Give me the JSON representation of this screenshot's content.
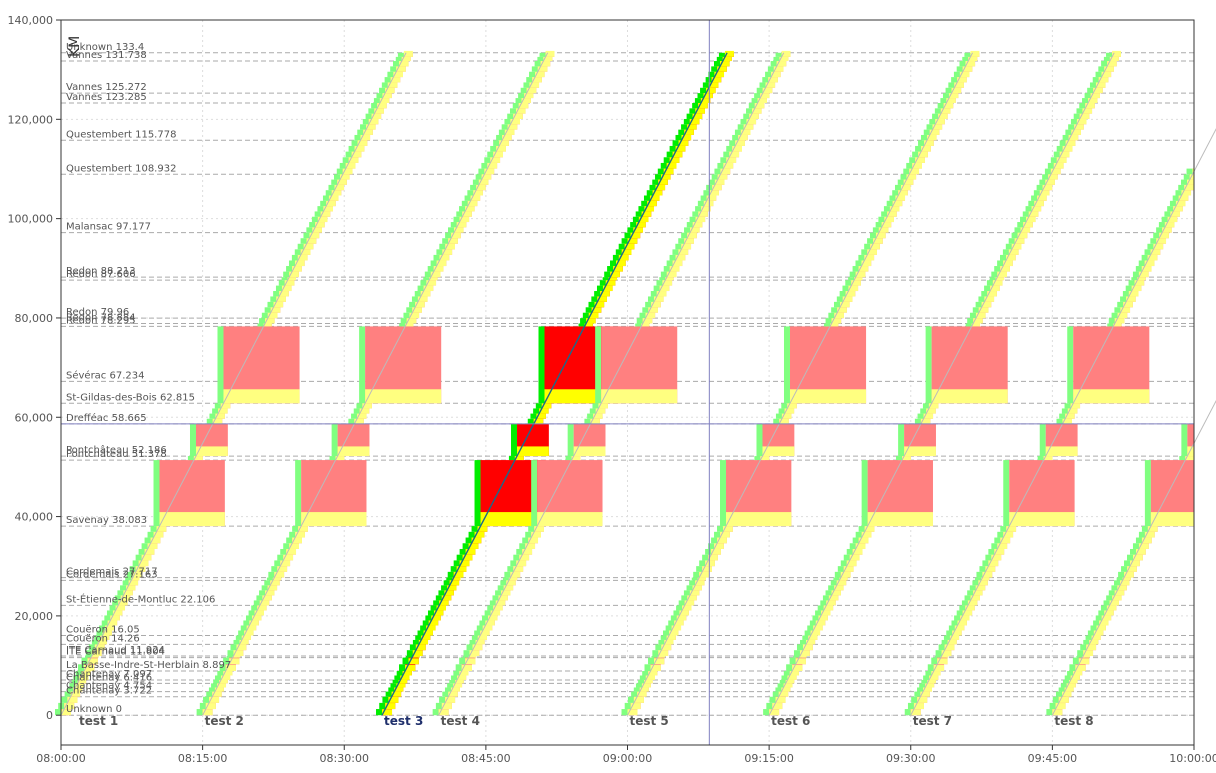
{
  "chart_data": {
    "type": "line",
    "title": "",
    "xlabel": "",
    "ylabel": "KM",
    "x_range": [
      "08:00:00",
      "10:00:00"
    ],
    "ylim": [
      -6000,
      140000
    ],
    "x_ticks": [
      "08:00:00",
      "08:15:00",
      "08:30:00",
      "08:45:00",
      "09:00:00",
      "09:15:00",
      "09:30:00",
      "09:45:00",
      "10:00:00"
    ],
    "y_ticks": [
      0,
      20000,
      40000,
      60000,
      80000,
      100000,
      120000,
      140000
    ],
    "y_tick_labels": [
      "0",
      "20,000",
      "40,000",
      "60,000",
      "80,000",
      "100,000",
      "120,000",
      "140,000"
    ],
    "grid": true,
    "stations": [
      {
        "label": "Unknown 0",
        "km": 0
      },
      {
        "label": "Chantenay 3.722",
        "km": 3.722
      },
      {
        "label": "Chantenay 4.754",
        "km": 4.754
      },
      {
        "label": "Chantenay 6.416",
        "km": 6.416
      },
      {
        "label": "Chantenay 7.097",
        "km": 7.097
      },
      {
        "label": "La Basse-Indre-St-Herblain 8.897",
        "km": 8.897
      },
      {
        "label": "ITE Carnaud 11.604",
        "km": 11.604
      },
      {
        "label": "ITE Carnaud 11.924",
        "km": 11.924
      },
      {
        "label": "Couëron 14.26",
        "km": 14.26
      },
      {
        "label": "Couëron 16.05",
        "km": 16.05
      },
      {
        "label": "St-Étienne-de-Montluc 22.106",
        "km": 22.106
      },
      {
        "label": "Cordemais 27.163",
        "km": 27.163
      },
      {
        "label": "Cordemais 27.717",
        "km": 27.717
      },
      {
        "label": "Savenay 38.083",
        "km": 38.083
      },
      {
        "label": "Pontchâteau 51.378",
        "km": 51.378
      },
      {
        "label": "Pontchâteau 52.186",
        "km": 52.186
      },
      {
        "label": "Drefféac 58.665",
        "km": 58.665
      },
      {
        "label": "St-Gildas-des-Bois 62.815",
        "km": 62.815
      },
      {
        "label": "Sévérac 67.234",
        "km": 67.234
      },
      {
        "label": "Redon 78.295",
        "km": 78.295
      },
      {
        "label": "Redon 78.884",
        "km": 78.884
      },
      {
        "label": "Redon 79.96",
        "km": 79.96
      },
      {
        "label": "Redon 87.606",
        "km": 87.606
      },
      {
        "label": "Redon 88.213",
        "km": 88.213
      },
      {
        "label": "Malansac 97.177",
        "km": 97.177
      },
      {
        "label": "Questembert 108.932",
        "km": 108.932
      },
      {
        "label": "Questembert 115.778",
        "km": 115.778
      },
      {
        "label": "Vannes 123.285",
        "km": 123.285
      },
      {
        "label": "Vannes 125.272",
        "km": 125.272
      },
      {
        "label": "Vannes 131.738",
        "km": 131.738
      },
      {
        "label": "Unknown 133.4",
        "km": 133.4
      }
    ],
    "series": [
      {
        "name": "test 1",
        "start": "08:00:00",
        "active": false
      },
      {
        "name": "test 2",
        "start": "08:15:00",
        "active": false
      },
      {
        "name": "test 3",
        "start": "08:34:00",
        "active": true
      },
      {
        "name": "test 4",
        "start": "08:40:00",
        "active": false
      },
      {
        "name": "test 5",
        "start": "09:00:00",
        "active": false
      },
      {
        "name": "test 6",
        "start": "09:15:00",
        "active": false
      },
      {
        "name": "test 7",
        "start": "09:30:00",
        "active": false
      },
      {
        "name": "test 8",
        "start": "09:45:00",
        "active": false
      }
    ],
    "crosshair": {
      "time": "09:08:40",
      "km": 58.665
    },
    "colors": {
      "occupation": "#ff8080",
      "occupation_active": "#ff0000",
      "release": "#ffff80",
      "release_active": "#ffff00",
      "approach": "#80ff80",
      "approach_active": "#00ee00",
      "path": "#bbbbbb",
      "path_active": "#1a6a8a",
      "crosshair": "#8080c0"
    }
  }
}
